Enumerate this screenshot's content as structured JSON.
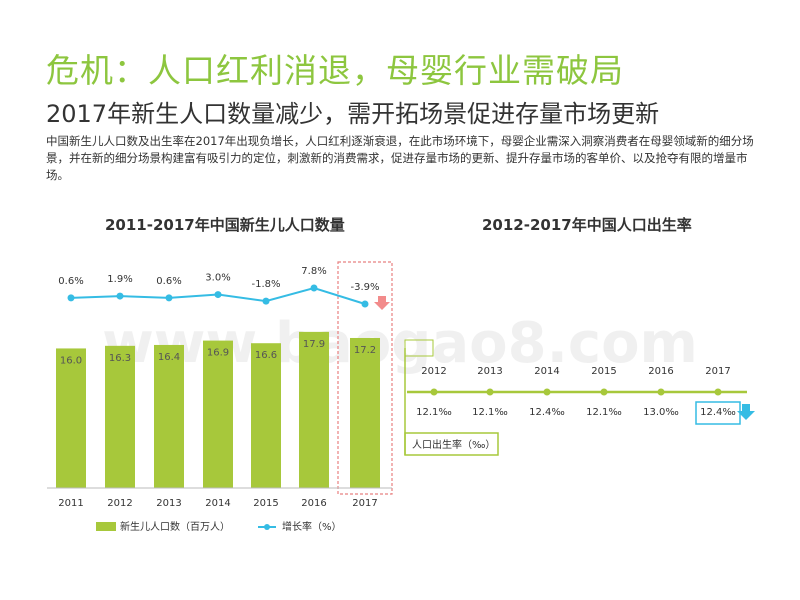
{
  "title": "危机：人口红利消退，母婴行业需破局",
  "subtitle": "2017年新生人口数量减少，需开拓场景促进存量市场更新",
  "description": "中国新生儿人口数及出生率在2017年出现负增长，人口红利逐渐衰退，在此市场环境下，母婴企业需深入洞察消费者在母婴领域新的细分场景，并在新的细分场景构建富有吸引力的定位，刺激新的消费需求，促进存量市场的更新、提升存量市场的客单价、以及抢夺有限的增量市场。",
  "watermark": "www.baogao8.com",
  "colors": {
    "bar": "#a7c83b",
    "line": "#35bce4",
    "title": "#8dc63f",
    "down_arrow_red": "#f28b8b",
    "down_arrow_blue": "#35bce4",
    "highlight_red": "#e88080",
    "highlight_blue": "#35bce4"
  },
  "chart_data": [
    {
      "type": "bar",
      "title": "2011-2017年中国新生儿人口数量",
      "categories": [
        "2011",
        "2012",
        "2013",
        "2014",
        "2015",
        "2016",
        "2017"
      ],
      "series": [
        {
          "name": "新生儿人口数（百万人）",
          "type": "bar",
          "values": [
            16.0,
            16.3,
            16.4,
            16.9,
            16.6,
            17.9,
            17.2
          ],
          "labels": [
            "16.0",
            "16.3",
            "16.4",
            "16.9",
            "16.6",
            "17.9",
            "17.2"
          ]
        },
        {
          "name": "增长率（%）",
          "type": "line",
          "values": [
            0.6,
            1.9,
            0.6,
            3.0,
            -1.8,
            7.8,
            -3.9
          ],
          "labels": [
            "0.6%",
            "1.9%",
            "0.6%",
            "3.0%",
            "-1.8%",
            "7.8%",
            "-3.9%"
          ]
        }
      ],
      "highlight_category": "2017",
      "legend_position": "bottom"
    },
    {
      "type": "line",
      "title": "2012-2017年中国人口出生率",
      "categories": [
        "2012",
        "2013",
        "2014",
        "2015",
        "2016",
        "2017"
      ],
      "series": [
        {
          "name": "人口出生率（‰）",
          "values": [
            12.1,
            12.1,
            12.4,
            12.1,
            13.0,
            12.4
          ],
          "labels": [
            "12.1‰",
            "12.1‰",
            "12.4‰",
            "12.1‰",
            "13.0‰",
            "12.4‰"
          ]
        }
      ],
      "highlight_category": "2017",
      "legend_position": "bottom-left"
    }
  ]
}
